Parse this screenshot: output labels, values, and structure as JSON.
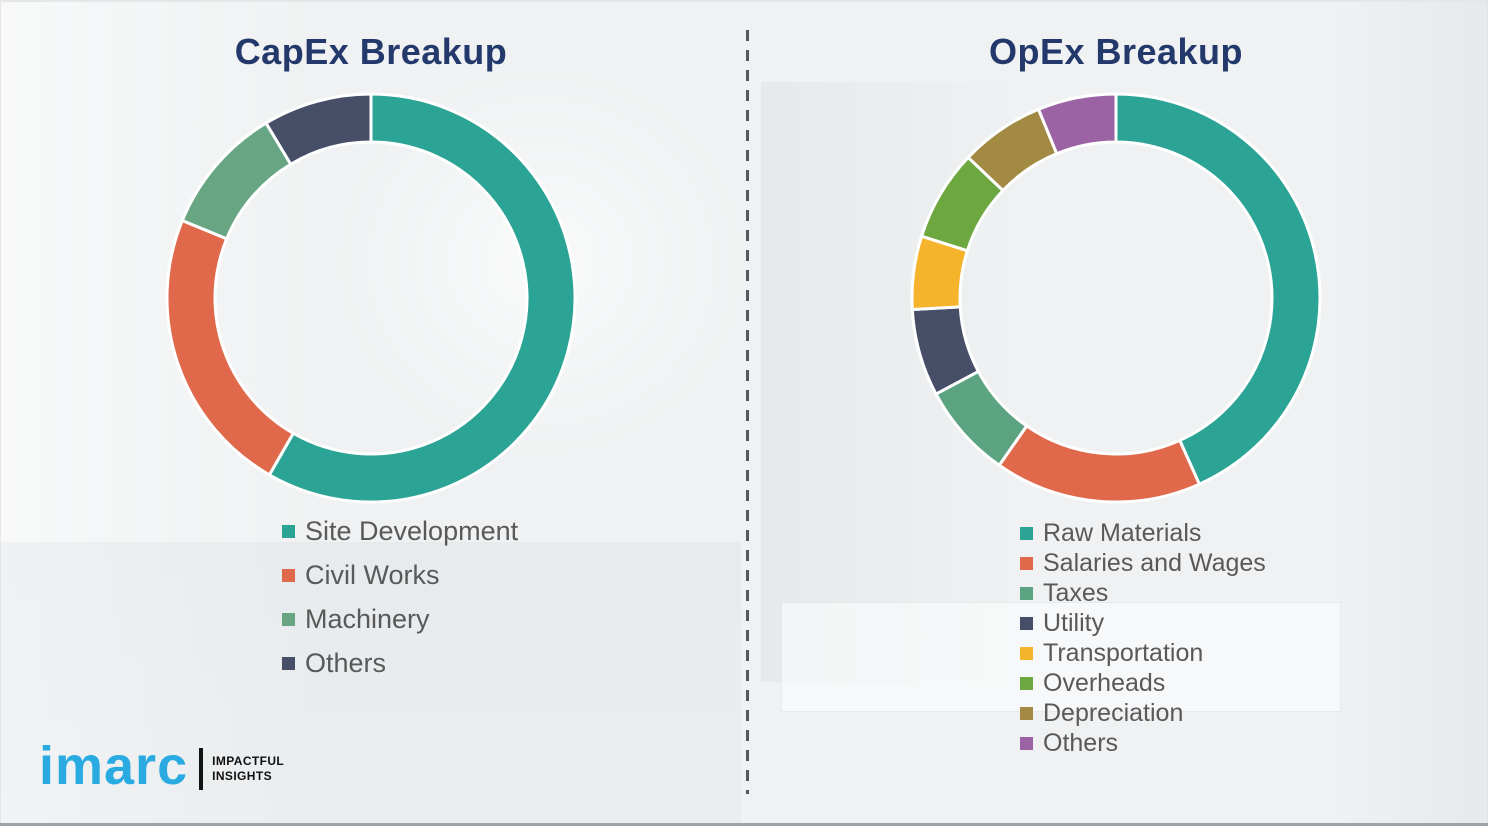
{
  "page": {
    "background_color": "#EFF1F2",
    "bottom_rule_color": "#9EA3A7",
    "divider_style": "vertical-dashed",
    "divider_color": "#55595E",
    "title_color": "#24396B",
    "legend_text_color": "#595959",
    "slice_separator_color": "#FFFFFF"
  },
  "logo": {
    "brand": "imarc",
    "brand_color": "#29ABE2",
    "tagline_line1": "IMPACTFUL",
    "tagline_line2": "INSIGHTS",
    "tagline_color": "#101010"
  },
  "chart_data": [
    {
      "type": "pie",
      "subtype": "donut",
      "title": "CapEx Breakup",
      "start_angle_deg": 0,
      "direction": "clockwise-from-top",
      "inner_radius_ratio": 0.765,
      "legend_position": "below-left",
      "slices": [
        {
          "label": "Site Development",
          "value": 58.3,
          "color": "#2BA495"
        },
        {
          "label": "Civil Works",
          "value": 22.9,
          "color": "#E0694B"
        },
        {
          "label": "Machinery",
          "value": 10.2,
          "color": "#67A583"
        },
        {
          "label": "Others",
          "value": 8.6,
          "color": "#474F68"
        }
      ]
    },
    {
      "type": "pie",
      "subtype": "donut",
      "title": "OpEx Breakup",
      "start_angle_deg": 0,
      "direction": "clockwise-from-top",
      "inner_radius_ratio": 0.765,
      "legend_position": "below-left",
      "slices": [
        {
          "label": "Raw Materials",
          "value": 43.3,
          "color": "#2BA495"
        },
        {
          "label": "Salaries and Wages",
          "value": 16.4,
          "color": "#E0694B"
        },
        {
          "label": "Taxes",
          "value": 7.5,
          "color": "#5CA381"
        },
        {
          "label": "Utility",
          "value": 6.9,
          "color": "#474F68"
        },
        {
          "label": "Transportation",
          "value": 5.8,
          "color": "#F6B42C"
        },
        {
          "label": "Overheads",
          "value": 7.2,
          "color": "#6CA73F"
        },
        {
          "label": "Depreciation",
          "value": 6.7,
          "color": "#A38A43"
        },
        {
          "label": "Others",
          "value": 6.2,
          "color": "#9B63A4"
        }
      ]
    }
  ]
}
